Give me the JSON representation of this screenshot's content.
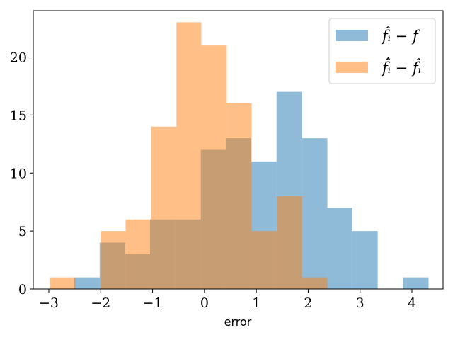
{
  "chart_data": {
    "type": "histogram",
    "xlabel": "error",
    "ylabel": "",
    "xlim": [
      -3.3,
      4.6
    ],
    "ylim": [
      0,
      24
    ],
    "xticks": [
      -3,
      -2,
      -1,
      0,
      1,
      2,
      3,
      4
    ],
    "yticks": [
      0,
      5,
      10,
      15,
      20
    ],
    "grid": false,
    "legend_position": "top-right",
    "series": [
      {
        "name": "f̂ᵢ − f",
        "color": "#1f77b4",
        "opacity": 0.5,
        "bins": [
          {
            "x0": -2.51,
            "x1": -2.02,
            "count": 1
          },
          {
            "x0": -2.02,
            "x1": -1.53,
            "count": 4
          },
          {
            "x0": -1.53,
            "x1": -1.05,
            "count": 3
          },
          {
            "x0": -1.05,
            "x1": -0.56,
            "count": 6
          },
          {
            "x0": -0.56,
            "x1": -0.07,
            "count": 6
          },
          {
            "x0": -0.07,
            "x1": 0.42,
            "count": 12
          },
          {
            "x0": 0.42,
            "x1": 0.9,
            "count": 13
          },
          {
            "x0": 0.9,
            "x1": 1.39,
            "count": 11
          },
          {
            "x0": 1.39,
            "x1": 1.88,
            "count": 17
          },
          {
            "x0": 1.88,
            "x1": 2.37,
            "count": 13
          },
          {
            "x0": 2.37,
            "x1": 2.85,
            "count": 7
          },
          {
            "x0": 2.85,
            "x1": 3.34,
            "count": 5
          },
          {
            "x0": 3.34,
            "x1": 3.83,
            "count": 0
          },
          {
            "x0": 3.83,
            "x1": 4.32,
            "count": 1
          }
        ]
      },
      {
        "name": "f̂̂ᵢ − f̂ᵢ",
        "color": "#ff7f0e",
        "opacity": 0.5,
        "bins": [
          {
            "x0": -2.98,
            "x1": -2.49,
            "count": 1
          },
          {
            "x0": -2.49,
            "x1": -2.0,
            "count": 0
          },
          {
            "x0": -2.0,
            "x1": -1.52,
            "count": 5
          },
          {
            "x0": -1.52,
            "x1": -1.03,
            "count": 6
          },
          {
            "x0": -1.03,
            "x1": -0.54,
            "count": 14
          },
          {
            "x0": -0.54,
            "x1": -0.06,
            "count": 23
          },
          {
            "x0": -0.06,
            "x1": 0.43,
            "count": 21
          },
          {
            "x0": 0.43,
            "x1": 0.91,
            "count": 16
          },
          {
            "x0": 0.91,
            "x1": 1.4,
            "count": 5
          },
          {
            "x0": 1.4,
            "x1": 1.88,
            "count": 8
          },
          {
            "x0": 1.88,
            "x1": 2.37,
            "count": 1
          }
        ]
      }
    ]
  }
}
